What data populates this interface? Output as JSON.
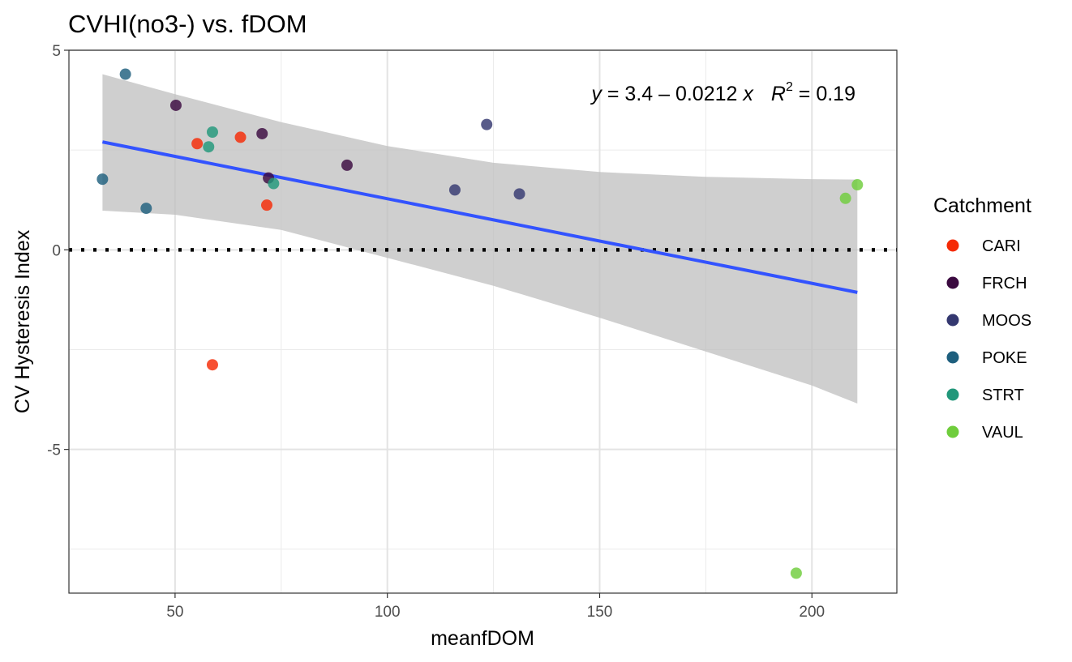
{
  "chart_data": {
    "type": "scatter",
    "title": "CVHI(no3-) vs. fDOM",
    "xlabel": "meanfDOM",
    "ylabel": "CV Hysteresis Index",
    "xlim": [
      25,
      220
    ],
    "ylim": [
      -8.6,
      5
    ],
    "x_ticks": [
      50,
      100,
      150,
      200
    ],
    "y_ticks": [
      5,
      0,
      -5
    ],
    "y_tick_labels": [
      "5",
      "0",
      "-5"
    ],
    "grid": true,
    "legend": {
      "title": "Catchment",
      "position": "right",
      "entries": [
        {
          "label": "CARI",
          "color": "#f52a05"
        },
        {
          "label": "FRCH",
          "color": "#3b0a40"
        },
        {
          "label": "MOOS",
          "color": "#343870"
        },
        {
          "label": "POKE",
          "color": "#1e5f7e"
        },
        {
          "label": "STRT",
          "color": "#21977a"
        },
        {
          "label": "VAUL",
          "color": "#6fcd3c"
        }
      ]
    },
    "series": [
      {
        "name": "CARI",
        "color": "#f52a05",
        "x": [
          55.2,
          65.4,
          71.6,
          58.8
        ],
        "y": [
          2.66,
          2.82,
          1.12,
          -2.88
        ]
      },
      {
        "name": "FRCH",
        "color": "#3b0a40",
        "x": [
          50.2,
          70.5,
          90.5,
          72.0
        ],
        "y": [
          3.62,
          2.91,
          2.12,
          1.8
        ]
      },
      {
        "name": "MOOS",
        "color": "#343870",
        "x": [
          123.4,
          115.9,
          131.1
        ],
        "y": [
          3.14,
          1.5,
          1.4
        ]
      },
      {
        "name": "POKE",
        "color": "#1e5f7e",
        "x": [
          38.3,
          32.9,
          43.2
        ],
        "y": [
          4.4,
          1.77,
          1.04
        ]
      },
      {
        "name": "STRT",
        "color": "#21977a",
        "x": [
          58.8,
          57.9,
          73.2
        ],
        "y": [
          2.95,
          2.58,
          1.66
        ]
      },
      {
        "name": "VAUL",
        "color": "#6fcd3c",
        "x": [
          210.7,
          207.9,
          196.3
        ],
        "y": [
          1.63,
          1.29,
          -8.1
        ]
      }
    ],
    "regression": {
      "x_range": [
        32.9,
        210.7
      ],
      "intercept": 3.4,
      "slope": -0.0212,
      "color": "#3353ff",
      "ci_lower": [
        {
          "x": 32.9,
          "y": 0.98
        },
        {
          "x": 50,
          "y": 0.88
        },
        {
          "x": 75,
          "y": 0.5
        },
        {
          "x": 100,
          "y": -0.2
        },
        {
          "x": 125,
          "y": -0.9
        },
        {
          "x": 150,
          "y": -1.7
        },
        {
          "x": 175,
          "y": -2.55
        },
        {
          "x": 200,
          "y": -3.4
        },
        {
          "x": 210.7,
          "y": -3.85
        }
      ],
      "ci_upper": [
        {
          "x": 32.9,
          "y": 4.4
        },
        {
          "x": 50,
          "y": 3.9
        },
        {
          "x": 75,
          "y": 3.2
        },
        {
          "x": 100,
          "y": 2.6
        },
        {
          "x": 125,
          "y": 2.18
        },
        {
          "x": 150,
          "y": 1.95
        },
        {
          "x": 175,
          "y": 1.83
        },
        {
          "x": 200,
          "y": 1.77
        },
        {
          "x": 210.7,
          "y": 1.76
        }
      ]
    },
    "hline": {
      "y": 0,
      "style": "dotted",
      "color": "#000000"
    },
    "annotation": {
      "y_var": "y",
      "eq_body": " = 3.4 – 0.0212 ",
      "x_var": "x",
      "r_var": "R",
      "r_sup": "2",
      "r_value": " = 0.19"
    }
  }
}
